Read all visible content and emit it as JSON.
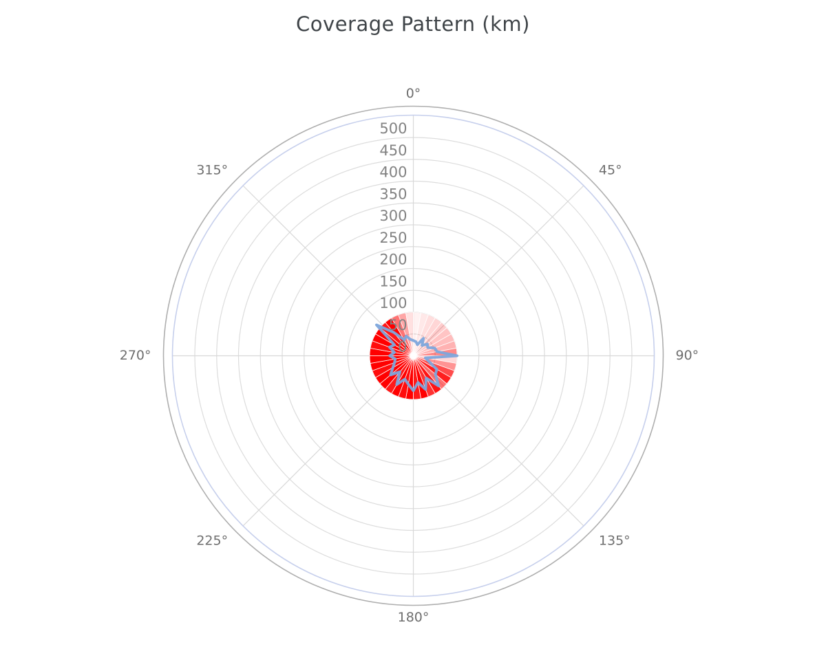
{
  "title": "Coverage Pattern (km)",
  "chart_data": {
    "type": "polar",
    "title": "Coverage Pattern (km)",
    "orientation": {
      "zero_at": "top",
      "direction": "clockwise"
    },
    "angular_axis": {
      "tick_degrees": [
        0,
        45,
        90,
        135,
        180,
        225,
        270,
        315
      ],
      "tick_labels": [
        "0°",
        "45°",
        "90°",
        "135°",
        "180°",
        "225°",
        "270°",
        "315°"
      ]
    },
    "radial_axis": {
      "min": 0,
      "max": 500,
      "tick_interval": 50,
      "tick_labels": [
        "0",
        "50",
        "100",
        "150",
        "200",
        "250",
        "300",
        "350",
        "400",
        "450",
        "500"
      ],
      "unit": "km"
    },
    "series": [
      {
        "name": "coverage-sectors",
        "type": "polar_bar",
        "color": "#ff0000",
        "sector_width_deg": 10,
        "radius_km": 100,
        "start_angles_deg": [
          0,
          10,
          20,
          30,
          40,
          50,
          60,
          70,
          80,
          90,
          100,
          110,
          120,
          130,
          140,
          150,
          160,
          170,
          180,
          190,
          200,
          210,
          220,
          230,
          240,
          250,
          260,
          270,
          280,
          290,
          300,
          310,
          320,
          330,
          340,
          350
        ],
        "opacities": [
          0.05,
          0.09,
          0.13,
          0.16,
          0.2,
          0.23,
          0.26,
          0.3,
          0.46,
          0.15,
          0.42,
          0.7,
          0.88,
          0.55,
          0.92,
          0.8,
          1,
          0.9,
          1,
          0.95,
          1,
          0.9,
          1,
          1,
          0.95,
          1,
          1,
          1,
          0.95,
          1,
          1,
          0.9,
          1,
          0.55,
          0.35,
          0.12
        ]
      },
      {
        "name": "coverage-outline",
        "type": "polar_line",
        "color": "#7da7dc",
        "line_width": 4,
        "closed": true,
        "angles_deg": [
          0,
          10,
          20,
          30,
          40,
          50,
          60,
          70,
          80,
          90,
          100,
          110,
          120,
          130,
          140,
          150,
          160,
          170,
          180,
          190,
          200,
          210,
          220,
          230,
          240,
          250,
          260,
          270,
          280,
          290,
          300,
          310,
          320,
          330,
          340,
          350
        ],
        "values_km": [
          35,
          33,
          27,
          46,
          31,
          42,
          38,
          52,
          55,
          100,
          28,
          38,
          62,
          66,
          90,
          59,
          82,
          62,
          80,
          66,
          57,
          76,
          48,
          68,
          54,
          46,
          42,
          54,
          44,
          58,
          50,
          110,
          70,
          42,
          48,
          38
        ]
      }
    ],
    "style": {
      "background": "#ffffff",
      "grid_color": "#dcdcdc",
      "spoke_color": "#d8d8d8",
      "outer_ring_color": "#aeaeae",
      "angular_ring_color": "#c6cfec",
      "radial_label_color": "#828282",
      "angular_label_color": "#6e6e6e",
      "title_color": "#3f4448"
    }
  }
}
